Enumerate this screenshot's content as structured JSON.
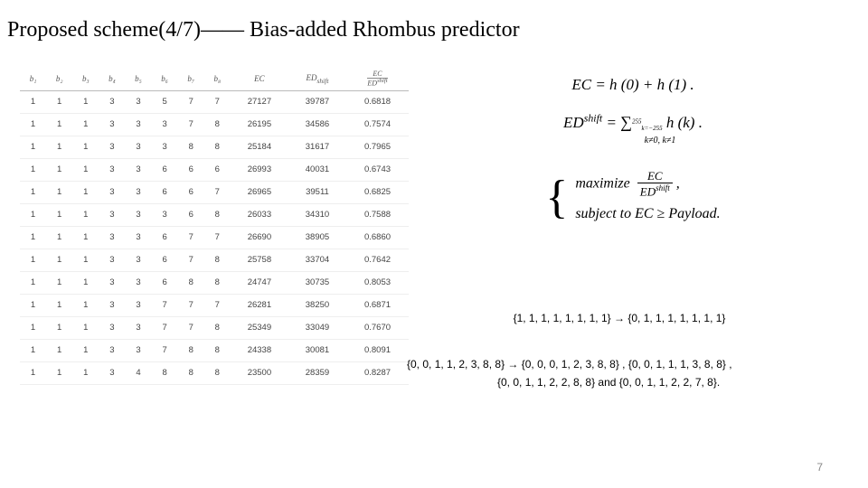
{
  "title": "Proposed scheme(4/7)—— Bias-added Rhombus predictor",
  "table": {
    "columns": [
      "b₁",
      "b₂",
      "b₃",
      "b₄",
      "b₅",
      "b₆",
      "b₇",
      "b₈",
      "EC",
      "EDshift",
      "EC/EDshift"
    ],
    "rows": [
      [
        "1",
        "1",
        "1",
        "3",
        "3",
        "5",
        "7",
        "7",
        "27127",
        "39787",
        "0.6818"
      ],
      [
        "1",
        "1",
        "1",
        "3",
        "3",
        "3",
        "7",
        "8",
        "26195",
        "34586",
        "0.7574"
      ],
      [
        "1",
        "1",
        "1",
        "3",
        "3",
        "3",
        "8",
        "8",
        "25184",
        "31617",
        "0.7965"
      ],
      [
        "1",
        "1",
        "1",
        "3",
        "3",
        "6",
        "6",
        "6",
        "26993",
        "40031",
        "0.6743"
      ],
      [
        "1",
        "1",
        "1",
        "3",
        "3",
        "6",
        "6",
        "7",
        "26965",
        "39511",
        "0.6825"
      ],
      [
        "1",
        "1",
        "1",
        "3",
        "3",
        "3",
        "6",
        "8",
        "26033",
        "34310",
        "0.7588"
      ],
      [
        "1",
        "1",
        "1",
        "3",
        "3",
        "6",
        "7",
        "7",
        "26690",
        "38905",
        "0.6860"
      ],
      [
        "1",
        "1",
        "1",
        "3",
        "3",
        "6",
        "7",
        "8",
        "25758",
        "33704",
        "0.7642"
      ],
      [
        "1",
        "1",
        "1",
        "3",
        "3",
        "6",
        "8",
        "8",
        "24747",
        "30735",
        "0.8053"
      ],
      [
        "1",
        "1",
        "1",
        "3",
        "3",
        "7",
        "7",
        "7",
        "26281",
        "38250",
        "0.6871"
      ],
      [
        "1",
        "1",
        "1",
        "3",
        "3",
        "7",
        "7",
        "8",
        "25349",
        "33049",
        "0.7670"
      ],
      [
        "1",
        "1",
        "1",
        "3",
        "3",
        "7",
        "8",
        "8",
        "24338",
        "30081",
        "0.8091"
      ],
      [
        "1",
        "1",
        "1",
        "3",
        "4",
        "8",
        "8",
        "8",
        "23500",
        "28359",
        "0.8287"
      ]
    ]
  },
  "eq1_lhs": "EC",
  "eq1_rhs": "h (0) + h (1) .",
  "eq2_lhs": "ED",
  "eq2_sup": "shift",
  "eq2_sum_upper": "255",
  "eq2_sum_lower": "k=−255",
  "eq2_rhs": "h (k) .",
  "eq2_note": "k≠0, k≠1",
  "opt_max": "maximize",
  "opt_frac_num": "EC",
  "opt_frac_den_a": "ED",
  "opt_frac_den_b": "shift",
  "opt_comma": ",",
  "opt_subj": "subject to EC ≥ Payload.",
  "note1_a": "{1, 1, 1, 1, 1, 1, 1, 1}",
  "arrow": "→",
  "note1_b": "{0, 1, 1, 1, 1, 1, 1, 1}",
  "note2_line1": "{0, 0, 1, 1, 2, 3, 8, 8} → {0, 0, 0, 1, 2, 3, 8, 8} , {0, 0, 1, 1, 1, 3, 8, 8} ,",
  "note2_line2": "{0, 0, 1, 1, 2, 2, 8, 8} and {0, 0, 1, 1, 2, 2, 7, 8}.",
  "pagenum": "7"
}
